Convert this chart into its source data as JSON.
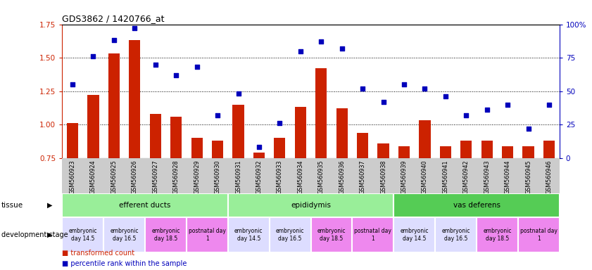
{
  "title": "GDS3862 / 1420766_at",
  "samples": [
    "GSM560923",
    "GSM560924",
    "GSM560925",
    "GSM560926",
    "GSM560927",
    "GSM560928",
    "GSM560929",
    "GSM560930",
    "GSM560931",
    "GSM560932",
    "GSM560933",
    "GSM560934",
    "GSM560935",
    "GSM560936",
    "GSM560937",
    "GSM560938",
    "GSM560939",
    "GSM560940",
    "GSM560941",
    "GSM560942",
    "GSM560943",
    "GSM560944",
    "GSM560945",
    "GSM560946"
  ],
  "bar_values": [
    1.01,
    1.22,
    1.53,
    1.63,
    1.08,
    1.06,
    0.9,
    0.88,
    1.15,
    0.79,
    0.9,
    1.13,
    1.42,
    1.12,
    0.94,
    0.86,
    0.84,
    1.03,
    0.84,
    0.88,
    0.88,
    0.84,
    0.84,
    0.88
  ],
  "scatter_values": [
    55,
    76,
    88,
    97,
    70,
    62,
    68,
    32,
    48,
    8,
    26,
    80,
    87,
    82,
    52,
    42,
    55,
    52,
    46,
    32,
    36,
    40,
    22,
    40
  ],
  "bar_color": "#cc2200",
  "scatter_color": "#0000bb",
  "ylim_left": [
    0.75,
    1.75
  ],
  "ylim_right": [
    0,
    100
  ],
  "yticks_left": [
    0.75,
    1.0,
    1.25,
    1.5,
    1.75
  ],
  "yticks_right": [
    0,
    25,
    50,
    75,
    100
  ],
  "ytick_labels_right": [
    "0",
    "25",
    "50",
    "75",
    "100%"
  ],
  "hlines": [
    1.0,
    1.25,
    1.5
  ],
  "tissue_groups": [
    {
      "label": "efferent ducts",
      "start": 0,
      "end": 8,
      "color": "#99ee99"
    },
    {
      "label": "epididymis",
      "start": 8,
      "end": 16,
      "color": "#99ee99"
    },
    {
      "label": "vas deferens",
      "start": 16,
      "end": 24,
      "color": "#55cc55"
    }
  ],
  "dev_stage_groups": [
    {
      "label": "embryonic\nday 14.5",
      "start": 0,
      "end": 2,
      "color": "#ddddff"
    },
    {
      "label": "embryonic\nday 16.5",
      "start": 2,
      "end": 4,
      "color": "#ddddff"
    },
    {
      "label": "embryonic\nday 18.5",
      "start": 4,
      "end": 6,
      "color": "#ee88ee"
    },
    {
      "label": "postnatal day\n1",
      "start": 6,
      "end": 8,
      "color": "#ee88ee"
    },
    {
      "label": "embryonic\nday 14.5",
      "start": 8,
      "end": 10,
      "color": "#ddddff"
    },
    {
      "label": "embryonic\nday 16.5",
      "start": 10,
      "end": 12,
      "color": "#ddddff"
    },
    {
      "label": "embryonic\nday 18.5",
      "start": 12,
      "end": 14,
      "color": "#ee88ee"
    },
    {
      "label": "postnatal day\n1",
      "start": 14,
      "end": 16,
      "color": "#ee88ee"
    },
    {
      "label": "embryonic\nday 14.5",
      "start": 16,
      "end": 18,
      "color": "#ddddff"
    },
    {
      "label": "embryonic\nday 16.5",
      "start": 18,
      "end": 20,
      "color": "#ddddff"
    },
    {
      "label": "embryonic\nday 18.5",
      "start": 20,
      "end": 22,
      "color": "#ee88ee"
    },
    {
      "label": "postnatal day\n1",
      "start": 22,
      "end": 24,
      "color": "#ee88ee"
    }
  ],
  "legend_red_label": "transformed count",
  "legend_blue_label": "percentile rank within the sample",
  "bar_width": 0.55,
  "tissue_label": "tissue",
  "dev_label": "development stage",
  "xticklabel_bg": "#cccccc"
}
